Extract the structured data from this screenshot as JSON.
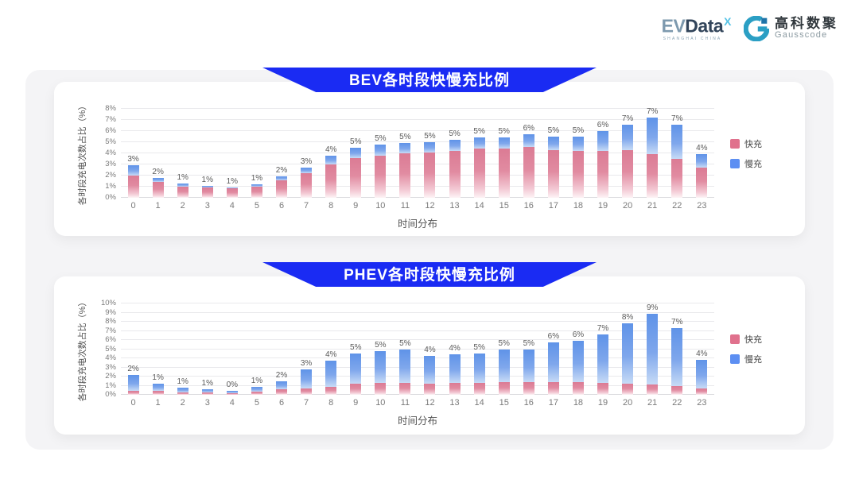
{
  "header": {
    "evdata": {
      "ev": "EV",
      "data": "Data",
      "sup": "X",
      "subtext": "SHANGHAI CHINA"
    },
    "gausscode": {
      "cn": "高科数聚",
      "en": "Gausscode"
    }
  },
  "colors": {
    "ribbon_blue": "#1a2bf3",
    "fast_pink": "#e0718d",
    "slow_blue": "#5d8ff2",
    "panel_gray": "#f4f4f6"
  },
  "chart_data": [
    {
      "type": "bar",
      "stacked": true,
      "title": "BEV各时段快慢充比例",
      "xlabel": "时间分布",
      "ylabel": "各时段充电次数占比（%）",
      "ylim": [
        0,
        8
      ],
      "ytick_step": 1,
      "grid": true,
      "legend_position": "right",
      "categories": [
        "0",
        "1",
        "2",
        "3",
        "4",
        "5",
        "6",
        "7",
        "8",
        "9",
        "10",
        "11",
        "12",
        "13",
        "14",
        "15",
        "16",
        "17",
        "18",
        "19",
        "20",
        "21",
        "22",
        "23"
      ],
      "bar_labels": [
        "3%",
        "2%",
        "1%",
        "1%",
        "1%",
        "1%",
        "2%",
        "3%",
        "4%",
        "5%",
        "5%",
        "5%",
        "5%",
        "5%",
        "5%",
        "5%",
        "6%",
        "5%",
        "5%",
        "6%",
        "7%",
        "7%",
        "7%",
        "4%"
      ],
      "series": [
        {
          "name": "快充",
          "color": "#e0718d",
          "values": [
            2.0,
            1.4,
            1.0,
            0.9,
            0.85,
            1.0,
            1.6,
            2.2,
            3.0,
            3.6,
            3.8,
            4.0,
            4.1,
            4.2,
            4.4,
            4.4,
            4.6,
            4.3,
            4.2,
            4.2,
            4.3,
            3.9,
            3.5,
            2.7
          ]
        },
        {
          "name": "慢充",
          "color": "#5d8ff2",
          "values": [
            0.9,
            0.4,
            0.3,
            0.2,
            0.1,
            0.2,
            0.3,
            0.5,
            0.8,
            0.9,
            1.0,
            0.9,
            0.9,
            1.0,
            1.0,
            1.0,
            1.1,
            1.2,
            1.3,
            1.8,
            2.3,
            3.3,
            3.1,
            1.2
          ]
        }
      ]
    },
    {
      "type": "bar",
      "stacked": true,
      "title": "PHEV各时段快慢充比例",
      "xlabel": "时间分布",
      "ylabel": "各时段充电次数占比（%）",
      "ylim": [
        0,
        10
      ],
      "ytick_step": 1,
      "grid": true,
      "legend_position": "right",
      "categories": [
        "0",
        "1",
        "2",
        "3",
        "4",
        "5",
        "6",
        "7",
        "8",
        "9",
        "10",
        "11",
        "12",
        "13",
        "14",
        "15",
        "16",
        "17",
        "18",
        "19",
        "20",
        "21",
        "22",
        "23"
      ],
      "bar_labels": [
        "2%",
        "1%",
        "1%",
        "1%",
        "0%",
        "1%",
        "2%",
        "3%",
        "4%",
        "5%",
        "5%",
        "5%",
        "4%",
        "4%",
        "5%",
        "5%",
        "5%",
        "6%",
        "6%",
        "7%",
        "8%",
        "9%",
        "7%",
        "4%"
      ],
      "series": [
        {
          "name": "快充",
          "color": "#e0718d",
          "values": [
            0.45,
            0.4,
            0.3,
            0.25,
            0.2,
            0.35,
            0.6,
            0.7,
            0.9,
            1.2,
            1.3,
            1.3,
            1.2,
            1.3,
            1.3,
            1.4,
            1.4,
            1.4,
            1.4,
            1.3,
            1.2,
            1.1,
            1.0,
            0.7
          ]
        },
        {
          "name": "慢充",
          "color": "#5d8ff2",
          "values": [
            1.75,
            0.8,
            0.5,
            0.35,
            0.25,
            0.5,
            0.9,
            2.1,
            2.8,
            3.3,
            3.5,
            3.7,
            3.1,
            3.1,
            3.2,
            3.6,
            3.6,
            4.3,
            4.5,
            5.3,
            6.6,
            7.8,
            6.3,
            3.1
          ]
        }
      ]
    }
  ]
}
